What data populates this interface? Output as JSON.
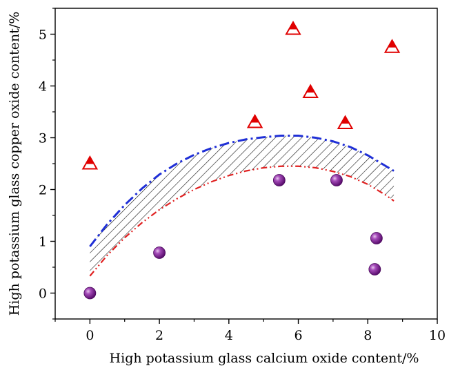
{
  "chart_data": {
    "type": "scatter",
    "title": "",
    "xlabel": "High potassium glass calcium oxide content/%",
    "ylabel": "High potassium glass copper oxide content/%",
    "xlim": [
      -1,
      10
    ],
    "ylim": [
      -0.5,
      5.5
    ],
    "x_ticks": [
      0,
      2,
      4,
      6,
      8,
      10
    ],
    "y_ticks": [
      0,
      1,
      2,
      3,
      4,
      5
    ],
    "x_tick_labels": [
      "0",
      "2",
      "4",
      "6",
      "8",
      "10"
    ],
    "y_tick_labels": [
      "0",
      "1",
      "2",
      "3",
      "4",
      "5"
    ],
    "grid": false,
    "legend": "none",
    "series": [
      {
        "marker": "triangle",
        "color": "#e00000",
        "points": [
          {
            "x": 0.0,
            "y": 2.5
          },
          {
            "x": 4.75,
            "y": 3.3
          },
          {
            "x": 5.85,
            "y": 5.1
          },
          {
            "x": 6.35,
            "y": 3.88
          },
          {
            "x": 7.35,
            "y": 3.28
          },
          {
            "x": 8.7,
            "y": 4.75
          }
        ]
      },
      {
        "marker": "sphere",
        "color": "#7a1a8c",
        "points": [
          {
            "x": 0.0,
            "y": 0.0
          },
          {
            "x": 2.0,
            "y": 0.78
          },
          {
            "x": 5.45,
            "y": 2.18
          },
          {
            "x": 7.1,
            "y": 2.18
          },
          {
            "x": 8.25,
            "y": 1.06
          },
          {
            "x": 8.2,
            "y": 0.46
          }
        ]
      }
    ],
    "boundaries": [
      {
        "style": "dash-dot",
        "color": "#1f2fd6",
        "x": [
          0.0,
          0.5,
          1.0,
          1.5,
          2.0,
          2.5,
          3.0,
          3.5,
          4.0,
          4.5,
          5.0,
          5.5,
          6.0,
          6.5,
          7.0,
          7.5,
          8.0,
          8.5,
          8.75
        ],
        "y": [
          0.9,
          1.33,
          1.7,
          2.02,
          2.29,
          2.5,
          2.67,
          2.8,
          2.9,
          2.97,
          3.01,
          3.04,
          3.04,
          3.0,
          2.93,
          2.82,
          2.66,
          2.46,
          2.36
        ]
      },
      {
        "style": "dash-dot-dot",
        "color": "#e02020",
        "x": [
          0.0,
          0.5,
          1.0,
          1.5,
          2.0,
          2.5,
          3.0,
          3.5,
          4.0,
          4.5,
          5.0,
          5.5,
          6.0,
          6.5,
          7.0,
          7.5,
          8.0,
          8.5,
          8.75
        ],
        "y": [
          0.33,
          0.73,
          1.07,
          1.36,
          1.61,
          1.82,
          2.0,
          2.15,
          2.27,
          2.36,
          2.42,
          2.45,
          2.45,
          2.42,
          2.35,
          2.25,
          2.1,
          1.9,
          1.78
        ]
      }
    ],
    "hatched_band": {
      "between": [
        "dash-dot",
        "dash-dot-dot"
      ],
      "x_range": [
        0.0,
        8.75
      ],
      "hatch_color": "#000000"
    }
  }
}
